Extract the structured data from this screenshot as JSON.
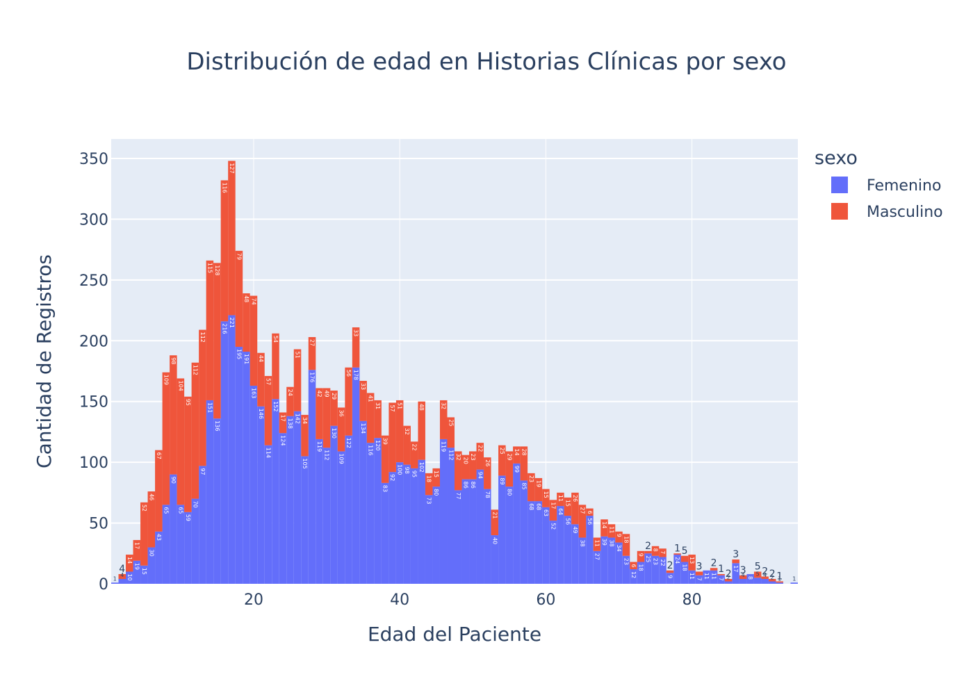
{
  "chart_data": {
    "type": "bar",
    "barmode": "stack",
    "title": "Distribución de edad en Historias Clínicas por sexo",
    "xlabel": "Edad del Paciente",
    "ylabel": "Cantidad de Registros",
    "xlim": [
      0.5,
      94.5
    ],
    "ylim": [
      0,
      366
    ],
    "xticks": [
      20,
      40,
      60,
      80
    ],
    "yticks": [
      0,
      50,
      100,
      150,
      200,
      250,
      300,
      350
    ],
    "grid": true,
    "legend": {
      "title": "sexo",
      "position": "right"
    },
    "colors": {
      "Femenino": "#636efa",
      "Masculino": "#ef553b",
      "plot_bg": "#e5ecf6",
      "text": "#2a3f5f"
    },
    "x": [
      1,
      2,
      3,
      4,
      5,
      6,
      7,
      8,
      9,
      10,
      11,
      12,
      13,
      14,
      15,
      16,
      17,
      18,
      19,
      20,
      21,
      22,
      23,
      24,
      25,
      26,
      27,
      28,
      29,
      30,
      31,
      32,
      33,
      34,
      35,
      36,
      37,
      38,
      39,
      40,
      41,
      42,
      43,
      44,
      45,
      46,
      47,
      48,
      49,
      50,
      51,
      52,
      53,
      54,
      55,
      56,
      57,
      58,
      59,
      60,
      61,
      62,
      63,
      64,
      65,
      66,
      67,
      68,
      69,
      70,
      71,
      72,
      73,
      74,
      75,
      76,
      77,
      78,
      79,
      80,
      81,
      82,
      83,
      84,
      85,
      86,
      87,
      88,
      89,
      90,
      91,
      92,
      93,
      94
    ],
    "series": [
      {
        "name": "Femenino",
        "values": [
          1,
          4,
          10,
          19,
          15,
          30,
          43,
          65,
          90,
          65,
          59,
          70,
          97,
          151,
          136,
          216,
          221,
          195,
          191,
          163,
          146,
          114,
          152,
          124,
          138,
          142,
          105,
          176,
          119,
          112,
          130,
          109,
          122,
          178,
          134,
          116,
          120,
          83,
          92,
          100,
          98,
          95,
          102,
          73,
          80,
          119,
          112,
          77,
          86,
          86,
          94,
          78,
          40,
          89,
          80,
          99,
          85,
          68,
          68,
          63,
          52,
          64,
          56,
          49,
          38,
          56,
          27,
          39,
          38,
          34,
          23,
          12,
          18,
          25,
          23,
          22,
          9,
          24,
          18,
          11,
          7,
          11,
          11,
          7,
          2,
          17,
          4,
          8,
          5,
          4,
          2,
          1,
          0,
          1
        ]
      },
      {
        "name": "Masculino",
        "values": [
          0,
          4,
          14,
          17,
          52,
          46,
          67,
          109,
          98,
          104,
          95,
          112,
          112,
          115,
          128,
          116,
          127,
          79,
          48,
          74,
          44,
          57,
          54,
          17,
          24,
          51,
          34,
          27,
          42,
          49,
          29,
          36,
          56,
          33,
          33,
          41,
          31,
          39,
          57,
          51,
          32,
          22,
          48,
          18,
          15,
          32,
          25,
          32,
          20,
          23,
          22,
          26,
          21,
          25,
          29,
          14,
          28,
          23,
          19,
          15,
          17,
          11,
          15,
          26,
          27,
          6,
          11,
          14,
          11,
          9,
          18,
          6,
          9,
          2,
          8,
          7,
          2,
          1,
          5,
          13,
          3,
          0,
          2,
          1,
          2,
          3,
          3,
          0,
          5,
          2,
          2,
          1,
          0,
          0
        ]
      }
    ]
  }
}
